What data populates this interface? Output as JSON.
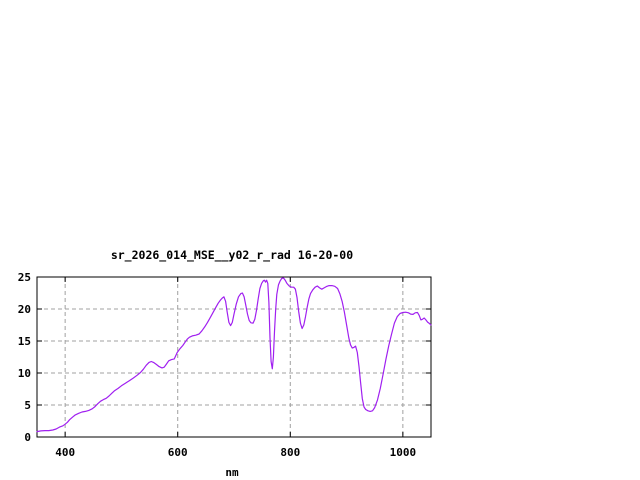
{
  "window": {
    "background": "#ffffff"
  },
  "chart": {
    "title": "sr_2026_014_MSE__y02_r_rad 16-20-00",
    "x_axis_label": "nm"
  },
  "chart_data": {
    "type": "line",
    "title": "sr_2026_014_MSE__y02_r_rad 16-20-00",
    "xlabel": "nm",
    "ylabel": "",
    "xlim": [
      350,
      1050
    ],
    "ylim": [
      0,
      25
    ],
    "xticks": [
      400,
      600,
      800,
      1000
    ],
    "yticks": [
      0,
      5,
      10,
      15,
      20,
      25
    ],
    "grid": true,
    "grid_style": "dashed",
    "legend_position": "none",
    "colors": {
      "line": "#a020f0",
      "grid": "#a0a0a0",
      "axis": "#000000",
      "text": "#000000",
      "background": "#ffffff"
    },
    "series": [
      {
        "name": "sr_2026_014_MSE__y02_r_rad",
        "color": "#a020f0",
        "x": [
          350,
          357,
          364,
          371,
          378,
          384,
          390,
          396,
          400,
          404,
          408,
          413,
          418,
          424,
          430,
          436,
          442,
          448,
          453,
          458,
          463,
          468,
          473,
          478,
          483,
          488,
          494,
          500,
          507,
          514,
          521,
          528,
          534,
          539,
          544,
          549,
          553,
          557,
          562,
          567,
          572,
          576,
          580,
          584,
          589,
          594,
          599,
          604,
          609,
          613,
          617,
          621,
          626,
          632,
          638,
          643,
          648,
          653,
          658,
          663,
          668,
          672,
          676,
          679,
          682,
          685,
          688,
          691,
          694,
          697,
          700,
          704,
          708,
          712,
          715,
          718,
          721,
          724,
          727,
          730,
          734,
          737,
          740,
          743,
          746,
          749,
          752,
          754,
          756,
          758,
          760,
          762,
          764,
          766,
          768,
          770,
          772,
          774,
          776,
          779,
          782,
          785,
          788,
          791,
          794,
          798,
          802,
          806,
          809,
          812,
          815,
          818,
          821,
          824,
          827,
          830,
          833,
          836,
          840,
          844,
          848,
          852,
          856,
          860,
          864,
          869,
          874,
          879,
          884,
          888,
          892,
          896,
          900,
          904,
          907,
          910,
          913,
          916,
          919,
          922,
          925,
          928,
          931,
          934,
          938,
          942,
          946,
          950,
          955,
          960,
          965,
          970,
          975,
          980,
          985,
          990,
          995,
          1000,
          1005,
          1010,
          1014,
          1018,
          1022,
          1026,
          1029,
          1032,
          1035,
          1038,
          1041,
          1044,
          1047,
          1050
        ],
        "y": [
          0.85,
          0.95,
          1.0,
          1.0,
          1.1,
          1.25,
          1.55,
          1.75,
          2.0,
          2.3,
          2.7,
          3.1,
          3.45,
          3.7,
          3.9,
          4.0,
          4.15,
          4.4,
          4.75,
          5.2,
          5.6,
          5.85,
          6.05,
          6.4,
          6.85,
          7.25,
          7.6,
          8.0,
          8.4,
          8.8,
          9.2,
          9.65,
          10.1,
          10.6,
          11.2,
          11.65,
          11.8,
          11.65,
          11.35,
          11.0,
          10.8,
          10.9,
          11.4,
          11.9,
          12.1,
          12.2,
          13.2,
          13.8,
          14.3,
          14.8,
          15.3,
          15.6,
          15.8,
          15.9,
          16.1,
          16.6,
          17.2,
          17.9,
          18.7,
          19.5,
          20.3,
          20.9,
          21.4,
          21.7,
          21.9,
          21.2,
          19.5,
          17.9,
          17.4,
          17.9,
          19.2,
          20.8,
          21.9,
          22.4,
          22.5,
          21.9,
          20.6,
          19.2,
          18.2,
          17.85,
          17.8,
          18.4,
          19.8,
          21.6,
          23.2,
          24.0,
          24.4,
          24.5,
          24.2,
          24.5,
          24.0,
          21.0,
          15.5,
          11.8,
          10.65,
          12.5,
          16.5,
          20.0,
          22.3,
          23.8,
          24.4,
          24.8,
          24.85,
          24.5,
          24.0,
          23.6,
          23.4,
          23.4,
          23.1,
          21.8,
          19.6,
          17.8,
          16.95,
          17.5,
          18.8,
          20.3,
          21.6,
          22.4,
          23.0,
          23.4,
          23.6,
          23.3,
          23.1,
          23.3,
          23.5,
          23.65,
          23.65,
          23.55,
          23.2,
          22.4,
          21.2,
          19.6,
          17.5,
          15.5,
          14.4,
          13.9,
          14.0,
          14.2,
          13.2,
          11.0,
          8.5,
          6.0,
          4.7,
          4.3,
          4.1,
          4.0,
          4.1,
          4.6,
          5.8,
          7.6,
          9.9,
          12.2,
          14.3,
          16.1,
          17.8,
          18.8,
          19.3,
          19.45,
          19.5,
          19.4,
          19.2,
          19.15,
          19.4,
          19.45,
          19.0,
          18.3,
          18.4,
          18.6,
          18.3,
          17.95,
          17.75,
          17.5
        ]
      }
    ]
  }
}
